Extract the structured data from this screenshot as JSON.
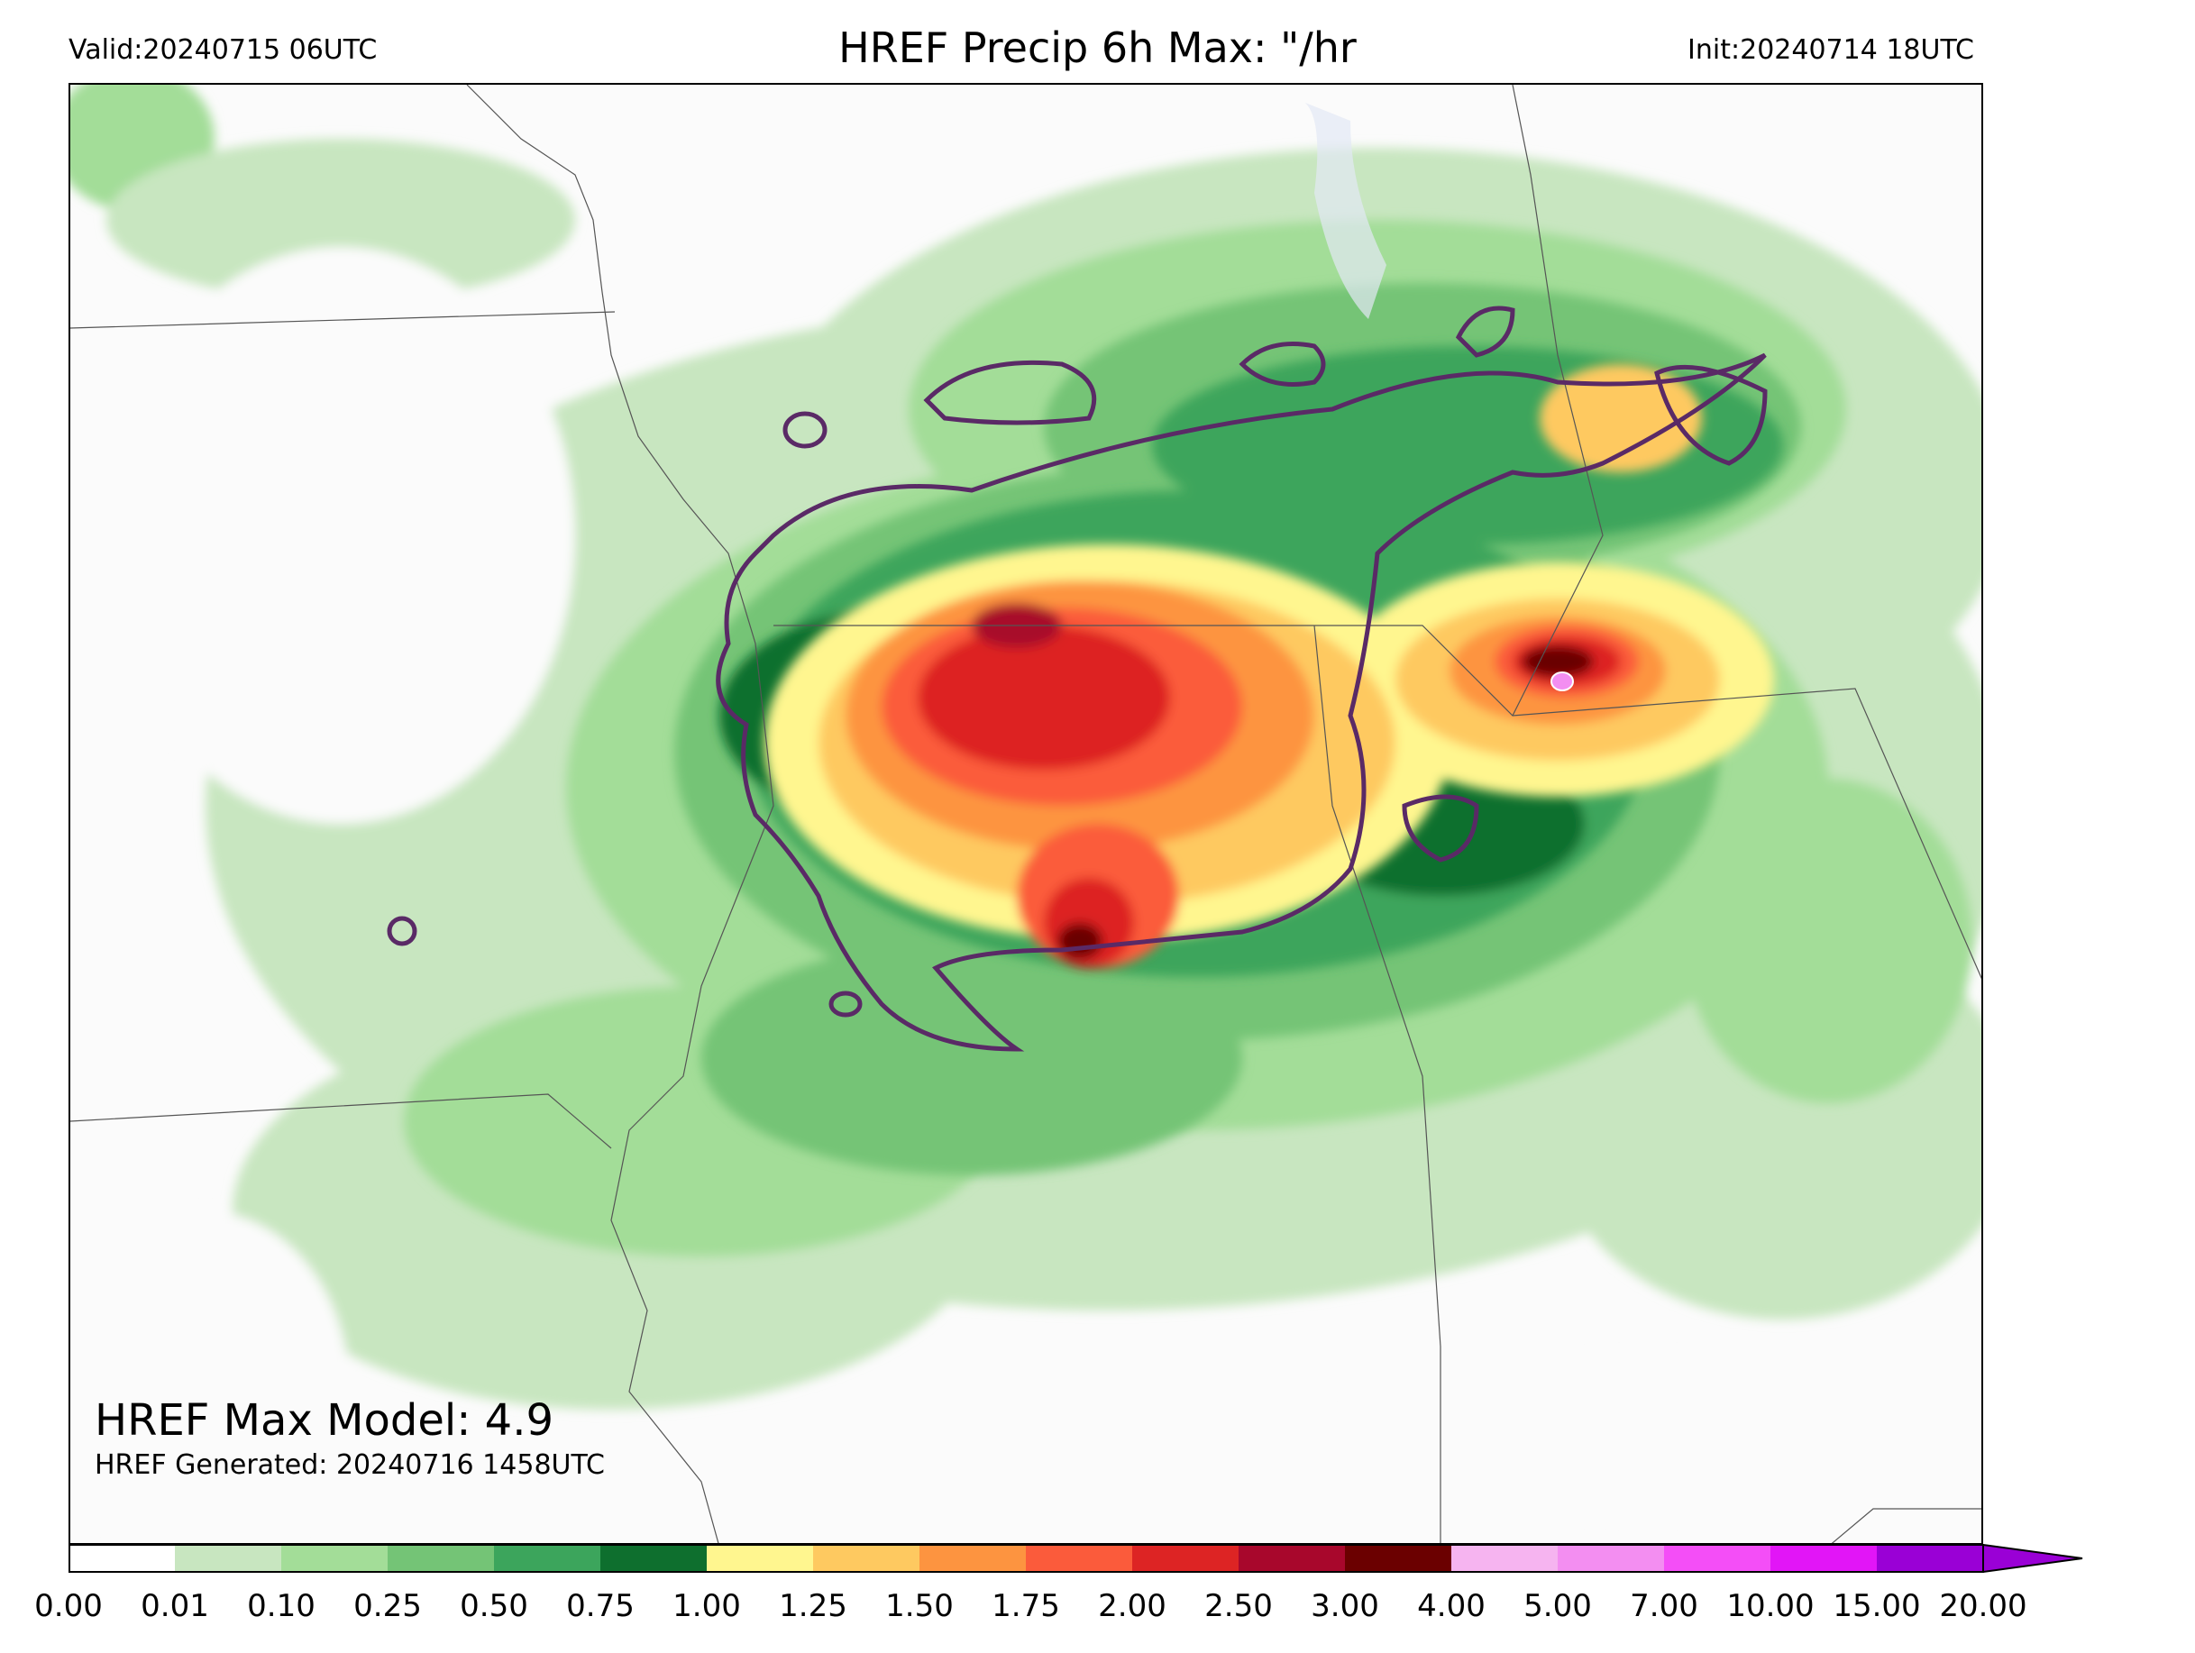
{
  "header": {
    "valid": "Valid:20240715 06UTC",
    "title": "HREF Precip 6h Max: \"/hr",
    "init": "Init:20240714 18UTC"
  },
  "annotations": {
    "max_model": "HREF Max Model: 4.9",
    "generated": "HREF Generated: 20240716 1458UTC"
  },
  "colorbar": {
    "ticks": [
      "0.00",
      "0.01",
      "0.10",
      "0.25",
      "0.50",
      "0.75",
      "1.00",
      "1.25",
      "1.50",
      "1.75",
      "2.00",
      "2.50",
      "3.00",
      "4.00",
      "5.00",
      "7.00",
      "10.00",
      "15.00",
      "20.00"
    ],
    "colors": [
      "#ffffff",
      "#c8e6c0",
      "#a3dd98",
      "#74c476",
      "#3ca55c",
      "#0e6f2e",
      "#fff68f",
      "#fec960",
      "#fd9440",
      "#fb5b3b",
      "#dd2424",
      "#a8072c",
      "#6b0000",
      "#f6b4f0",
      "#f38ef1",
      "#f44ef7",
      "#e215f7",
      "#9a00d6"
    ],
    "extend_color": "#9a00d6"
  },
  "map": {
    "background": "#fbfbfb",
    "boundary_color": "#555555",
    "contour_color": "#5a2a66"
  }
}
